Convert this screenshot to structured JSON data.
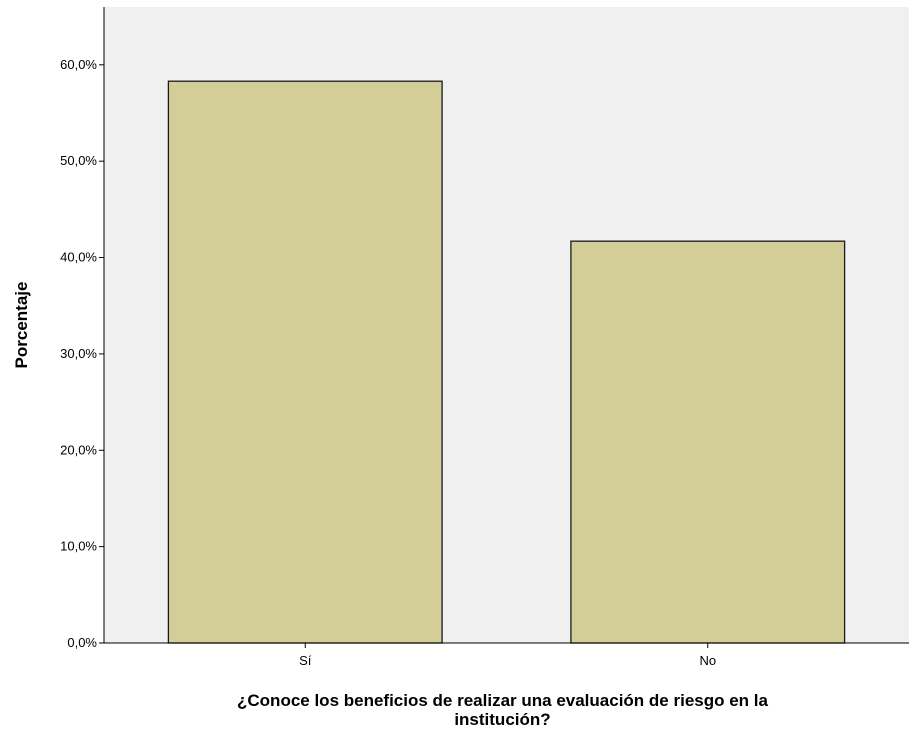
{
  "chart_data": {
    "type": "bar",
    "categories": [
      "Sí",
      "No"
    ],
    "values": [
      58.3,
      41.7
    ],
    "ylabel": "Porcentaje",
    "xlabel_lines": [
      "¿Conoce los beneficios de realizar una evaluación de riesgo en la",
      "institución?"
    ],
    "ylim": [
      0,
      66
    ],
    "yticks": [
      0,
      10,
      20,
      30,
      40,
      50,
      60
    ],
    "ytick_labels": [
      "0,0%",
      "10,0%",
      "20,0%",
      "30,0%",
      "40,0%",
      "50,0%",
      "60,0%"
    ],
    "grid": false,
    "colors": {
      "bar_fill": "#d3cd98",
      "bar_stroke": "#1a1a1a",
      "plot_background": "#f0f0f0"
    }
  }
}
